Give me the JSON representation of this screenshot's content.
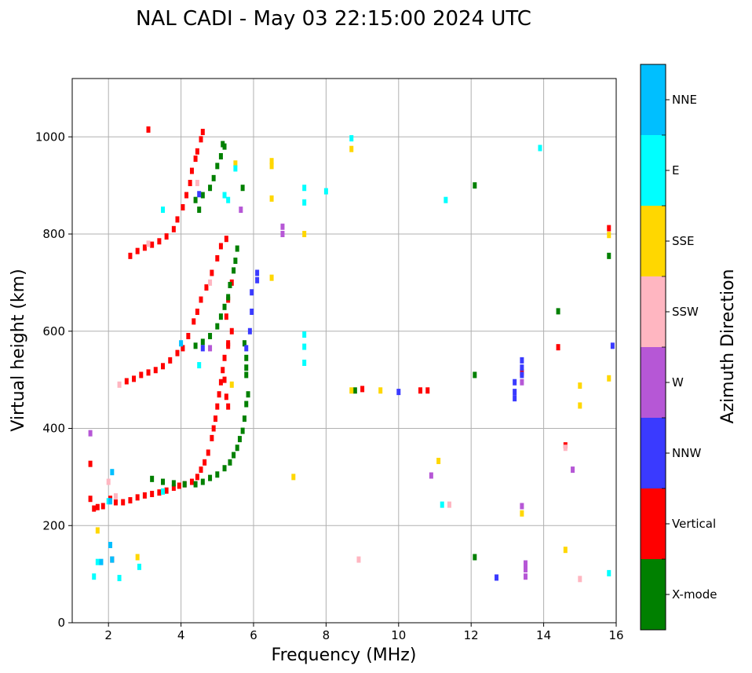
{
  "chart_data": {
    "type": "scatter",
    "title": "NAL CADI - May 03 22:15:00 2024 UTC",
    "xlabel": "Frequency (MHz)",
    "ylabel": "Virtual height (km)",
    "xlim": [
      1,
      16
    ],
    "ylim": [
      0,
      1120
    ],
    "xticks": [
      2,
      4,
      6,
      8,
      10,
      12,
      14,
      16
    ],
    "yticks": [
      0,
      200,
      400,
      600,
      800,
      1000
    ],
    "grid": true,
    "colorbar": {
      "label": "Azimuth Direction",
      "position": "right",
      "categories": [
        {
          "name": "X-mode",
          "color": "#008000"
        },
        {
          "name": "Vertical",
          "color": "#ff0000"
        },
        {
          "name": "NNW",
          "color": "#3a3aff"
        },
        {
          "name": "W",
          "color": "#b657d6"
        },
        {
          "name": "SSW",
          "color": "#ffb6c1"
        },
        {
          "name": "SSE",
          "color": "#ffd700"
        },
        {
          "name": "E",
          "color": "#00ffff"
        },
        {
          "name": "NNE",
          "color": "#00bfff"
        }
      ]
    },
    "series": [
      {
        "name": "Vertical",
        "points": [
          [
            1.5,
            255
          ],
          [
            1.6,
            235
          ],
          [
            1.7,
            238
          ],
          [
            1.85,
            240
          ],
          [
            2.05,
            255
          ],
          [
            2.2,
            248
          ],
          [
            2.4,
            248
          ],
          [
            2.6,
            252
          ],
          [
            2.8,
            258
          ],
          [
            3.0,
            262
          ],
          [
            3.2,
            265
          ],
          [
            3.4,
            268
          ],
          [
            3.6,
            272
          ],
          [
            3.8,
            278
          ],
          [
            3.95,
            282
          ],
          [
            4.1,
            285
          ],
          [
            4.3,
            290
          ],
          [
            4.45,
            300
          ],
          [
            4.55,
            315
          ],
          [
            4.65,
            330
          ],
          [
            4.75,
            350
          ],
          [
            4.85,
            380
          ],
          [
            4.9,
            400
          ],
          [
            4.95,
            420
          ],
          [
            5.0,
            445
          ],
          [
            5.05,
            470
          ],
          [
            5.1,
            495
          ],
          [
            5.15,
            520
          ],
          [
            5.2,
            545
          ],
          [
            5.3,
            570
          ],
          [
            5.4,
            600
          ],
          [
            2.5,
            497
          ],
          [
            2.7,
            502
          ],
          [
            2.9,
            510
          ],
          [
            3.1,
            515
          ],
          [
            3.3,
            520
          ],
          [
            3.5,
            528
          ],
          [
            3.7,
            540
          ],
          [
            3.9,
            555
          ],
          [
            4.05,
            565
          ],
          [
            4.2,
            590
          ],
          [
            4.35,
            620
          ],
          [
            4.45,
            640
          ],
          [
            4.55,
            665
          ],
          [
            4.7,
            690
          ],
          [
            4.85,
            720
          ],
          [
            5.0,
            750
          ],
          [
            5.1,
            775
          ],
          [
            5.25,
            790
          ],
          [
            2.6,
            755
          ],
          [
            2.8,
            765
          ],
          [
            3.0,
            772
          ],
          [
            3.2,
            778
          ],
          [
            3.4,
            785
          ],
          [
            3.6,
            795
          ],
          [
            3.8,
            810
          ],
          [
            3.9,
            830
          ],
          [
            4.05,
            855
          ],
          [
            4.15,
            880
          ],
          [
            4.25,
            905
          ],
          [
            4.3,
            930
          ],
          [
            4.4,
            955
          ],
          [
            4.45,
            970
          ],
          [
            4.55,
            995
          ],
          [
            4.6,
            1010
          ],
          [
            5.4,
            700
          ],
          [
            5.3,
            665
          ],
          [
            5.25,
            630
          ],
          [
            5.3,
            575
          ],
          [
            5.2,
            500
          ],
          [
            5.25,
            465
          ],
          [
            5.3,
            445
          ],
          [
            9.0,
            481
          ],
          [
            10.6,
            478
          ],
          [
            10.8,
            478
          ],
          [
            13.4,
            515
          ],
          [
            14.4,
            567
          ],
          [
            14.6,
            365
          ],
          [
            15.8,
            812
          ],
          [
            1.5,
            327
          ],
          [
            2.1,
            130
          ],
          [
            3.1,
            1015
          ]
        ]
      },
      {
        "name": "X-mode",
        "points": [
          [
            3.2,
            296
          ],
          [
            3.5,
            290
          ],
          [
            3.8,
            287
          ],
          [
            4.1,
            285
          ],
          [
            4.4,
            285
          ],
          [
            4.6,
            290
          ],
          [
            4.8,
            298
          ],
          [
            5.0,
            305
          ],
          [
            5.2,
            318
          ],
          [
            5.35,
            330
          ],
          [
            5.45,
            345
          ],
          [
            5.55,
            360
          ],
          [
            5.62,
            378
          ],
          [
            5.7,
            395
          ],
          [
            5.75,
            420
          ],
          [
            5.8,
            450
          ],
          [
            5.85,
            470
          ],
          [
            5.8,
            510
          ],
          [
            5.8,
            525
          ],
          [
            5.8,
            545
          ],
          [
            5.75,
            575
          ],
          [
            4.4,
            570
          ],
          [
            4.6,
            578
          ],
          [
            4.8,
            590
          ],
          [
            5.0,
            610
          ],
          [
            5.1,
            630
          ],
          [
            5.2,
            650
          ],
          [
            5.3,
            670
          ],
          [
            5.35,
            695
          ],
          [
            5.45,
            725
          ],
          [
            5.5,
            745
          ],
          [
            5.55,
            770
          ],
          [
            4.4,
            870
          ],
          [
            4.6,
            880
          ],
          [
            4.8,
            895
          ],
          [
            4.9,
            915
          ],
          [
            5.0,
            940
          ],
          [
            5.1,
            960
          ],
          [
            5.2,
            980
          ],
          [
            4.5,
            850
          ],
          [
            5.15,
            985
          ],
          [
            5.7,
            895
          ],
          [
            8.8,
            478
          ],
          [
            12.1,
            510
          ],
          [
            12.1,
            900
          ],
          [
            12.1,
            135
          ],
          [
            14.4,
            641
          ],
          [
            15.8,
            755
          ]
        ]
      },
      {
        "name": "NNW",
        "points": [
          [
            13.4,
            525
          ],
          [
            13.4,
            540
          ],
          [
            13.4,
            510
          ],
          [
            13.2,
            495
          ],
          [
            13.2,
            475
          ],
          [
            13.2,
            462
          ],
          [
            12.7,
            93
          ],
          [
            15.9,
            570
          ],
          [
            6.1,
            720
          ],
          [
            6.1,
            705
          ],
          [
            5.95,
            680
          ],
          [
            5.95,
            640
          ],
          [
            5.9,
            600
          ],
          [
            5.8,
            565
          ],
          [
            10.0,
            475
          ],
          [
            4.6,
            565
          ],
          [
            4.5,
            882
          ]
        ]
      },
      {
        "name": "W",
        "points": [
          [
            13.5,
            95
          ],
          [
            13.5,
            110
          ],
          [
            13.5,
            122
          ],
          [
            13.4,
            240
          ],
          [
            13.4,
            495
          ],
          [
            14.8,
            315
          ],
          [
            10.9,
            303
          ],
          [
            6.8,
            800
          ],
          [
            6.8,
            815
          ],
          [
            1.5,
            390
          ],
          [
            4.8,
            565
          ],
          [
            5.65,
            850
          ]
        ]
      },
      {
        "name": "SSW",
        "points": [
          [
            15.0,
            90
          ],
          [
            8.9,
            130
          ],
          [
            11.4,
            243
          ],
          [
            14.6,
            360
          ],
          [
            2.2,
            260
          ],
          [
            2.3,
            490
          ],
          [
            4.8,
            700
          ],
          [
            4.45,
            905
          ],
          [
            3.1,
            780
          ],
          [
            2.0,
            290
          ]
        ]
      },
      {
        "name": "SSE",
        "points": [
          [
            6.5,
            950
          ],
          [
            6.5,
            940
          ],
          [
            6.5,
            710
          ],
          [
            6.5,
            873
          ],
          [
            8.7,
            975
          ],
          [
            8.7,
            478
          ],
          [
            9.5,
            478
          ],
          [
            7.4,
            800
          ],
          [
            7.1,
            300
          ],
          [
            11.1,
            333
          ],
          [
            13.4,
            225
          ],
          [
            14.6,
            150
          ],
          [
            15.0,
            488
          ],
          [
            15.0,
            447
          ],
          [
            15.8,
            503
          ],
          [
            15.8,
            798
          ],
          [
            5.4,
            490
          ],
          [
            2.8,
            135
          ],
          [
            1.7,
            190
          ],
          [
            5.5,
            945
          ]
        ]
      },
      {
        "name": "E",
        "points": [
          [
            7.4,
            865
          ],
          [
            7.4,
            895
          ],
          [
            7.4,
            593
          ],
          [
            7.4,
            568
          ],
          [
            7.4,
            535
          ],
          [
            8.0,
            888
          ],
          [
            8.7,
            997
          ],
          [
            11.3,
            870
          ],
          [
            11.2,
            243
          ],
          [
            13.9,
            977
          ],
          [
            15.8,
            102
          ],
          [
            5.3,
            870
          ],
          [
            5.5,
            935
          ],
          [
            5.2,
            880
          ],
          [
            3.5,
            850
          ],
          [
            1.7,
            125
          ],
          [
            1.6,
            95
          ],
          [
            2.3,
            92
          ],
          [
            2.85,
            115
          ],
          [
            3.5,
            270
          ],
          [
            4.5,
            530
          ],
          [
            2.0,
            250
          ]
        ]
      },
      {
        "name": "NNE",
        "points": [
          [
            2.1,
            130
          ],
          [
            2.05,
            160
          ],
          [
            2.1,
            310
          ],
          [
            2.05,
            250
          ],
          [
            1.8,
            125
          ],
          [
            4.0,
            575
          ]
        ]
      }
    ]
  }
}
